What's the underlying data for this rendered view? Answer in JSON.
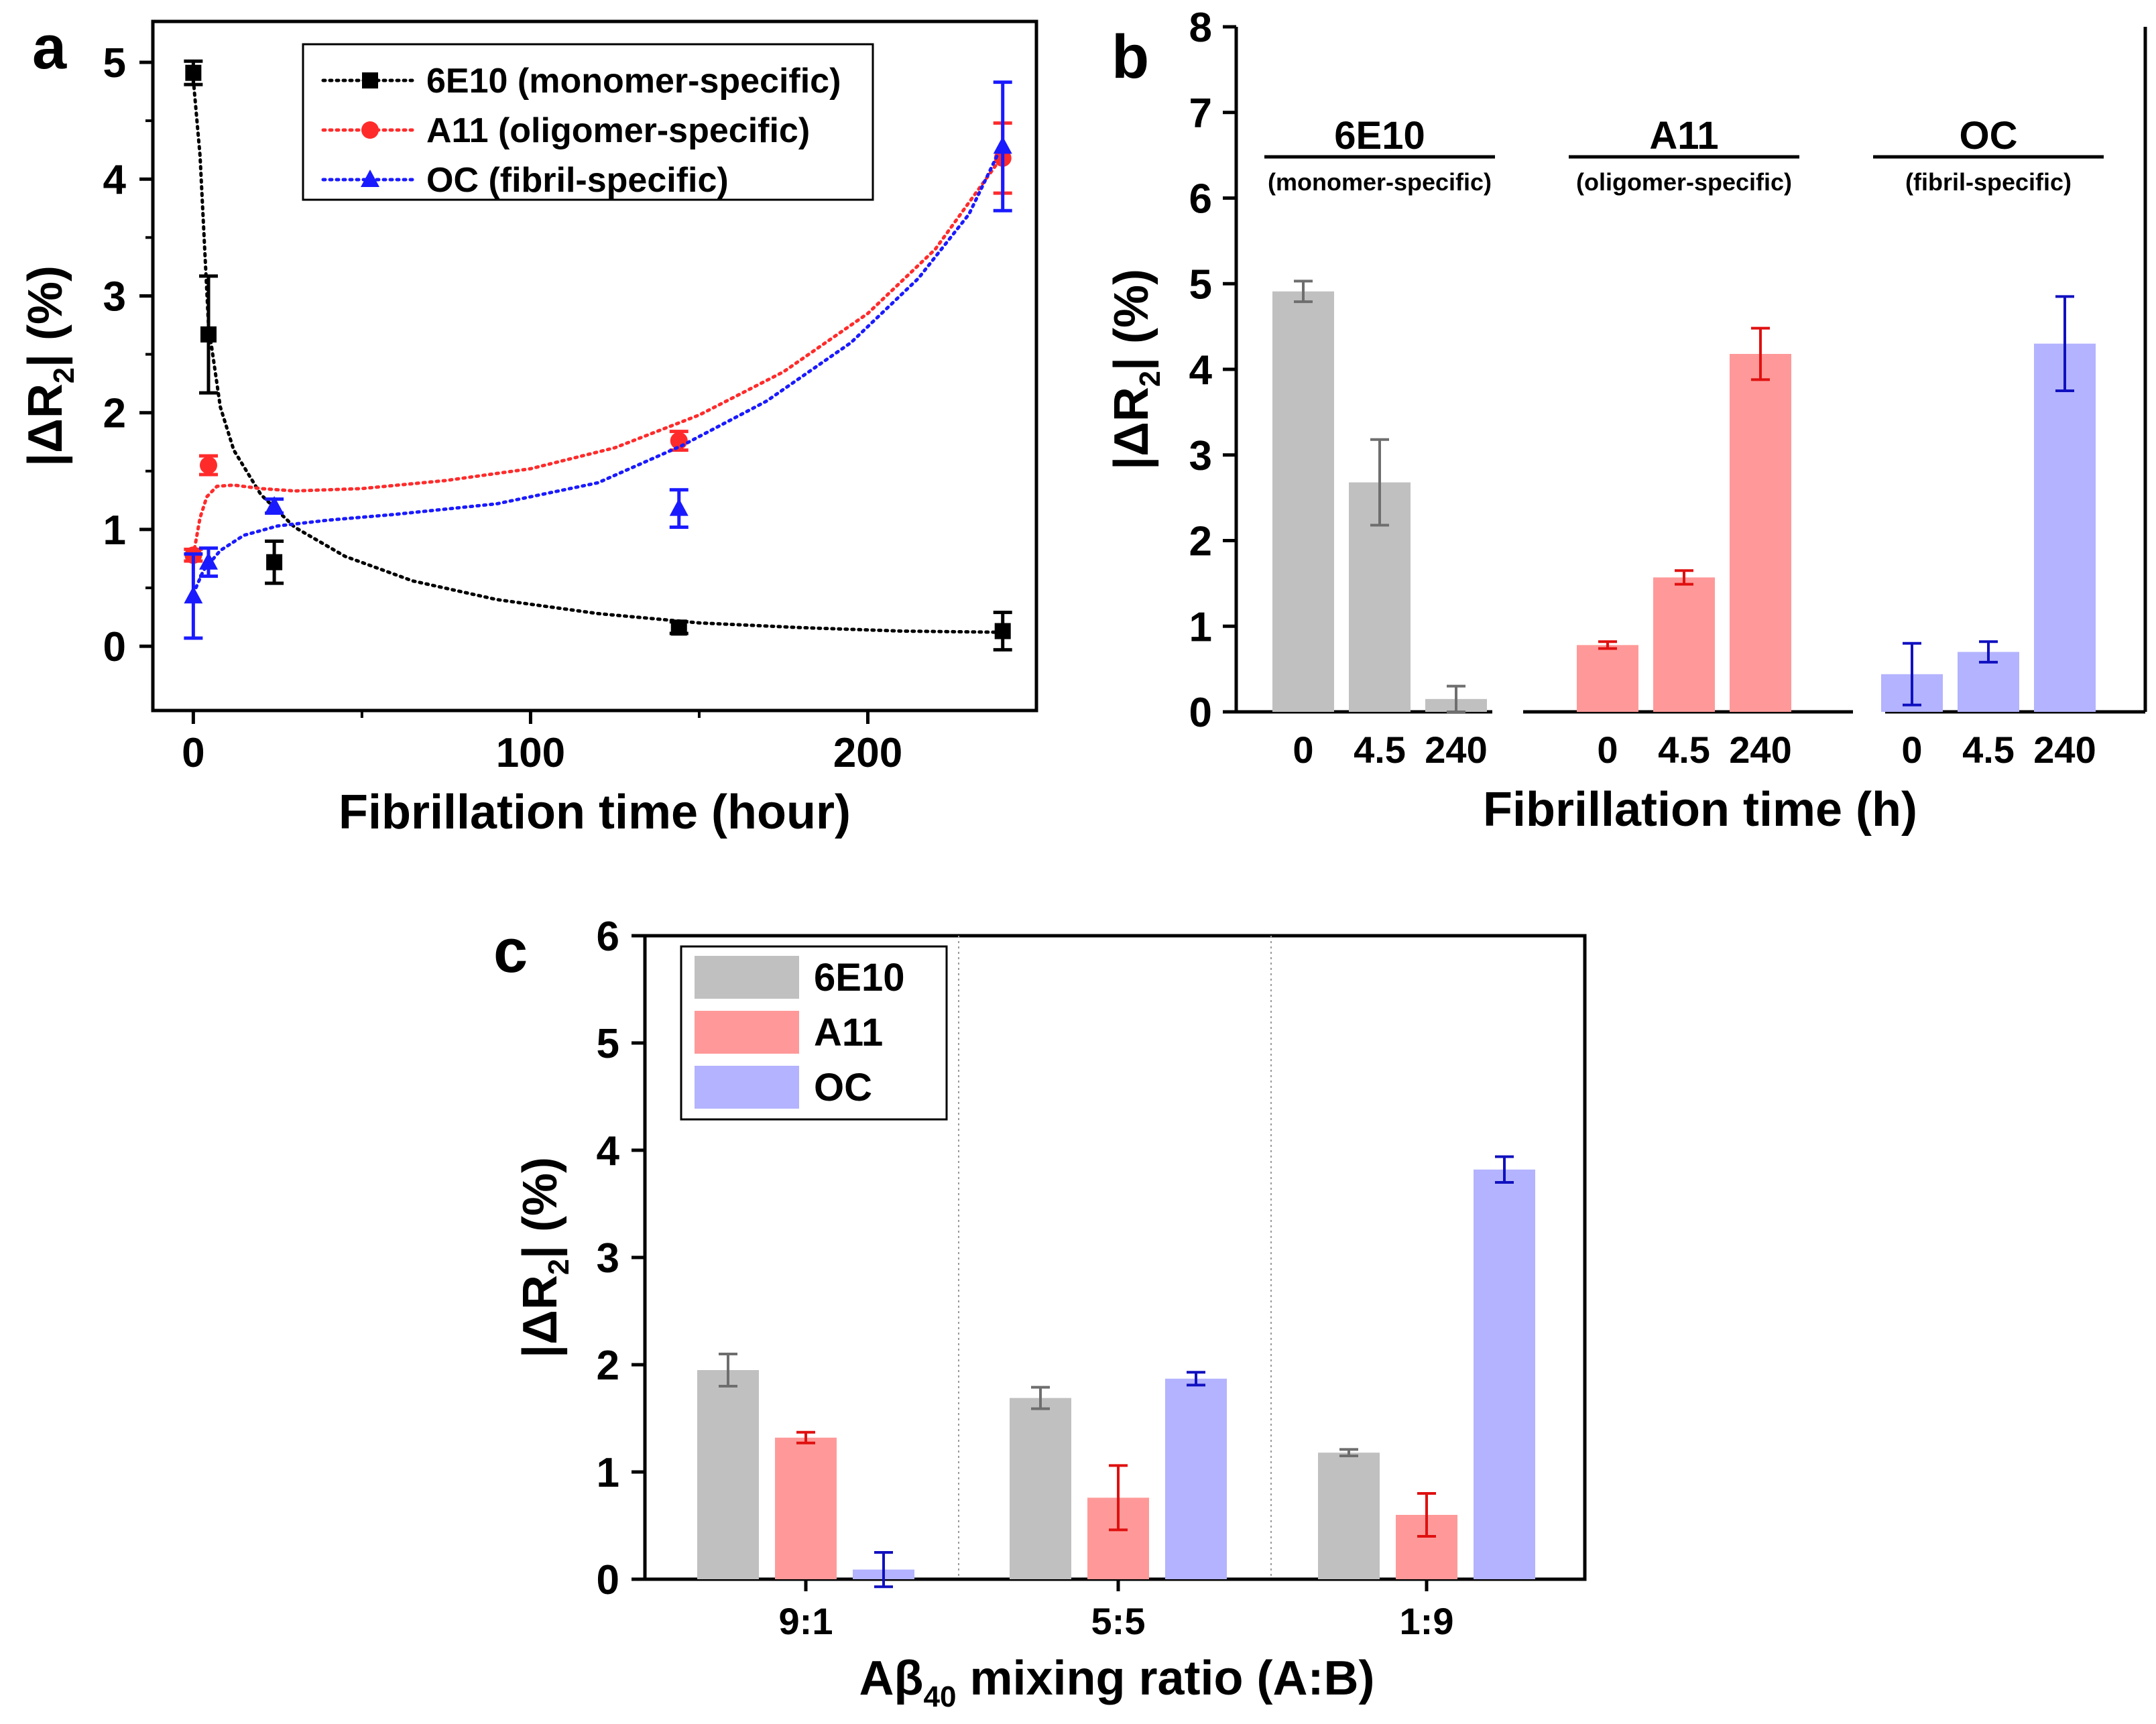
{
  "colors": {
    "axis": "#000000",
    "black": "#000000",
    "red": "#ff2b2b",
    "blue": "#1a1aff",
    "gray_bar": "#c0c0c0",
    "red_bar": "#ff9999",
    "blue_bar": "#b3b3ff",
    "gray_err": "#6e6e6e",
    "red_err": "#e01010",
    "blue_err": "#1010c0"
  },
  "chart_data": [
    {
      "panel": "a",
      "type": "scatter",
      "xlabel": "Fibrillation time (hour)",
      "ylabel_parts": [
        "|",
        "Δ",
        "R",
        "2",
        "| (%)"
      ],
      "xlim": [
        -12,
        250
      ],
      "ylim": [
        -0.55,
        5.35
      ],
      "xticks": [
        0,
        100,
        200
      ],
      "yticks": [
        0,
        1,
        2,
        3,
        4,
        5
      ],
      "legend_position": "top-center",
      "series": [
        {
          "name": "6E10 (monomer-specific)",
          "color": "black",
          "marker": "square",
          "x": [
            0,
            4.5,
            24,
            144,
            240
          ],
          "y": [
            4.91,
            2.67,
            0.72,
            0.16,
            0.13
          ],
          "err": [
            0.1,
            0.5,
            0.18,
            0.05,
            0.16
          ],
          "fit": [
            [
              0,
              4.85
            ],
            [
              2,
              4.2
            ],
            [
              4.5,
              2.75
            ],
            [
              8,
              2.05
            ],
            [
              12,
              1.68
            ],
            [
              20,
              1.3
            ],
            [
              30,
              1.02
            ],
            [
              45,
              0.77
            ],
            [
              65,
              0.56
            ],
            [
              90,
              0.4
            ],
            [
              120,
              0.28
            ],
            [
              150,
              0.2
            ],
            [
              180,
              0.16
            ],
            [
              210,
              0.13
            ],
            [
              240,
              0.12
            ]
          ]
        },
        {
          "name": "A11 (oligomer-specific)",
          "color": "red",
          "marker": "circle",
          "x": [
            0,
            4.5,
            144,
            240
          ],
          "y": [
            0.78,
            1.55,
            1.76,
            4.18
          ],
          "err": [
            0.05,
            0.08,
            0.08,
            0.3
          ],
          "fit": [
            [
              0,
              0.78
            ],
            [
              2,
              1.1
            ],
            [
              4,
              1.28
            ],
            [
              7,
              1.37
            ],
            [
              12,
              1.38
            ],
            [
              20,
              1.35
            ],
            [
              30,
              1.33
            ],
            [
              50,
              1.35
            ],
            [
              75,
              1.42
            ],
            [
              100,
              1.52
            ],
            [
              125,
              1.7
            ],
            [
              150,
              1.98
            ],
            [
              175,
              2.35
            ],
            [
              200,
              2.85
            ],
            [
              220,
              3.4
            ],
            [
              240,
              4.2
            ]
          ]
        },
        {
          "name": "OC (fibril-specific)",
          "color": "blue",
          "marker": "triangle",
          "x": [
            0,
            4.5,
            24,
            144,
            240
          ],
          "y": [
            0.43,
            0.72,
            1.2,
            1.18,
            4.28
          ],
          "err": [
            0.36,
            0.12,
            0.06,
            0.16,
            0.55
          ],
          "fit": [
            [
              0,
              0.45
            ],
            [
              3,
              0.65
            ],
            [
              8,
              0.82
            ],
            [
              15,
              0.95
            ],
            [
              25,
              1.03
            ],
            [
              40,
              1.08
            ],
            [
              60,
              1.13
            ],
            [
              90,
              1.22
            ],
            [
              120,
              1.4
            ],
            [
              145,
              1.72
            ],
            [
              170,
              2.1
            ],
            [
              195,
              2.6
            ],
            [
              215,
              3.15
            ],
            [
              230,
              3.7
            ],
            [
              240,
              4.3
            ]
          ]
        }
      ]
    },
    {
      "panel": "b",
      "type": "bar",
      "xlabel": "Fibrillation time (h)",
      "ylabel_parts": [
        "|",
        "Δ",
        "R",
        "2",
        "| (%)"
      ],
      "ylim": [
        0,
        8
      ],
      "yticks": [
        0,
        1,
        2,
        3,
        4,
        5,
        6,
        7,
        8
      ],
      "groups": [
        {
          "name": "6E10",
          "subtitle": "(monomer-specific)",
          "color": "gray",
          "categories": [
            "0",
            "4.5",
            "240"
          ],
          "values": [
            4.91,
            2.68,
            0.15
          ],
          "err": [
            0.12,
            0.5,
            0.15
          ]
        },
        {
          "name": "A11",
          "subtitle": "(oligomer-specific)",
          "color": "red",
          "categories": [
            "0",
            "4.5",
            "240"
          ],
          "values": [
            0.78,
            1.57,
            4.18
          ],
          "err": [
            0.04,
            0.08,
            0.3
          ]
        },
        {
          "name": "OC",
          "subtitle": "(fibril-specific)",
          "color": "blue",
          "categories": [
            "0",
            "4.5",
            "240"
          ],
          "values": [
            0.44,
            0.7,
            4.3
          ],
          "err": [
            0.36,
            0.12,
            0.55
          ]
        }
      ]
    },
    {
      "panel": "c",
      "type": "bar",
      "xlabel_parts": [
        "A",
        "β",
        "40",
        " mixing ratio (A:B)"
      ],
      "ylabel_parts": [
        "|",
        "Δ",
        "R",
        "2",
        "| (%)"
      ],
      "ylim": [
        0,
        6
      ],
      "yticks": [
        0,
        1,
        2,
        3,
        4,
        5,
        6
      ],
      "categories": [
        "9:1",
        "5:5",
        "1:9"
      ],
      "legend_position": "top-left",
      "series": [
        {
          "name": "6E10",
          "color": "gray",
          "values": [
            1.95,
            1.69,
            1.18
          ],
          "err": [
            0.15,
            0.1,
            0.03
          ]
        },
        {
          "name": "A11",
          "color": "red",
          "values": [
            1.32,
            0.76,
            0.6
          ],
          "err": [
            0.05,
            0.3,
            0.2
          ]
        },
        {
          "name": "OC",
          "color": "blue",
          "values": [
            0.09,
            1.87,
            3.82
          ],
          "err": [
            0.16,
            0.06,
            0.12
          ]
        }
      ]
    }
  ],
  "panel_labels": {
    "a": "a",
    "b": "b",
    "c": "c"
  }
}
